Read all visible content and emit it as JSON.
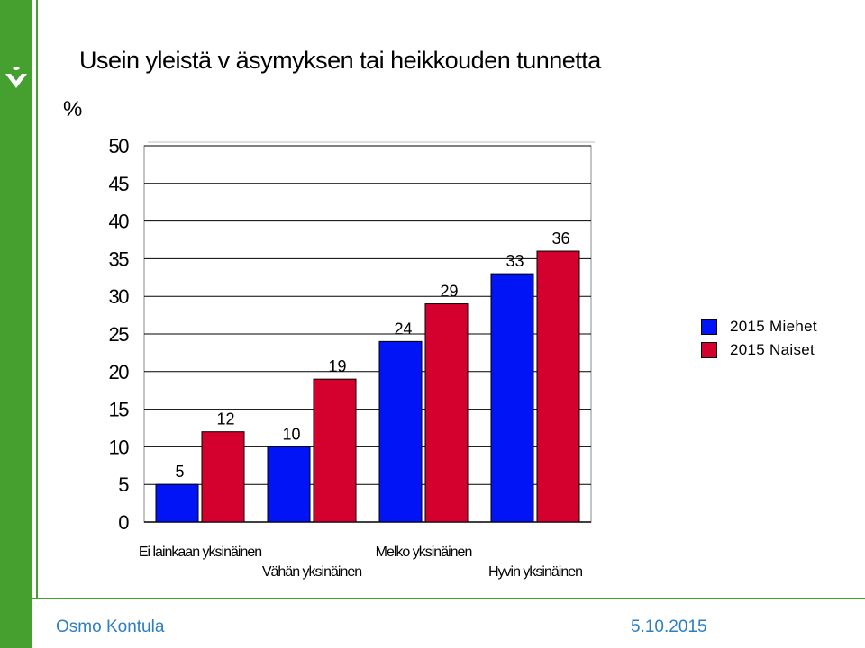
{
  "title": "Usein yleistä v äsymyksen tai heikkouden tunnetta",
  "unit": "%",
  "footer": {
    "author": "Osmo Kontula",
    "date": "5.10.2015"
  },
  "colors": {
    "brand": "#45a02f",
    "men": "#0014f5",
    "women": "#d4002e",
    "footer_text": "#2e7fc0"
  },
  "icons": {
    "logo": "leaf-logo-icon"
  },
  "chart_data": {
    "type": "bar",
    "categories": [
      "Ei lainkaan yksinäinen",
      "Vähän yksinäinen",
      "Melko yksinäinen",
      "Hyvin yksinäinen"
    ],
    "series": [
      {
        "name": "2015 Miehet",
        "values": [
          5,
          10,
          24,
          33
        ]
      },
      {
        "name": "2015 Naiset",
        "values": [
          12,
          19,
          29,
          36
        ]
      }
    ],
    "yticks": [
      0,
      5,
      10,
      15,
      20,
      25,
      30,
      35,
      40,
      45,
      50
    ],
    "ylim": [
      0,
      50
    ],
    "grid": true,
    "legend": "right",
    "data_labels": true,
    "xlabel": "",
    "ylabel": "%"
  }
}
